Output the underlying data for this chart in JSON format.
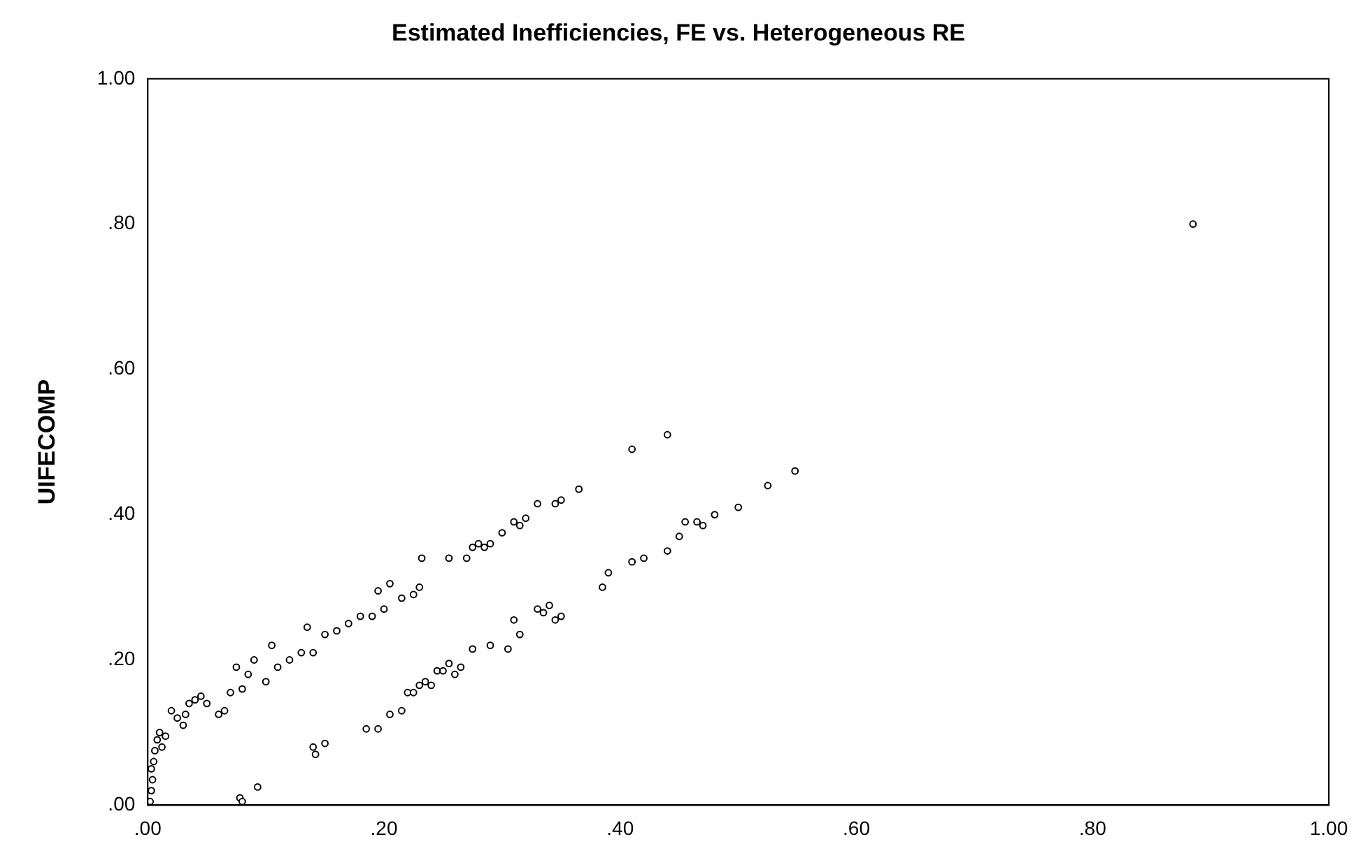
{
  "chart_data": {
    "type": "scatter",
    "title": "Estimated Inefficiencies, FE vs. Heterogeneous RE",
    "ylabel": "UIFECOMP",
    "marker": "circle",
    "grid": false,
    "legend": false,
    "xlim": [
      0,
      1
    ],
    "ylim": [
      0,
      1
    ],
    "xticks": [
      {
        "value": 0,
        "label": ".00"
      },
      {
        "value": 0.2,
        "label": ".20"
      },
      {
        "value": 0.4,
        "label": ".40"
      },
      {
        "value": 0.6,
        "label": ".60"
      },
      {
        "value": 0.8,
        "label": ".80"
      },
      {
        "value": 1,
        "label": "1.00"
      }
    ],
    "yticks": [
      {
        "value": 0,
        "label": ".00"
      },
      {
        "value": 0.2,
        "label": ".20"
      },
      {
        "value": 0.4,
        "label": ".40"
      },
      {
        "value": 0.6,
        "label": ".60"
      },
      {
        "value": 0.8,
        "label": ".80"
      },
      {
        "value": 1,
        "label": "1.00"
      }
    ],
    "series": [
      {
        "color": "#000000",
        "x": [
          0.002,
          0.003,
          0.004,
          0.003,
          0.005,
          0.006,
          0.008,
          0.01,
          0.012,
          0.015,
          0.02,
          0.025,
          0.03,
          0.032,
          0.035,
          0.04,
          0.045,
          0.05,
          0.06,
          0.065,
          0.07,
          0.075,
          0.08,
          0.085,
          0.09,
          0.1,
          0.105,
          0.11,
          0.12,
          0.13,
          0.135,
          0.14,
          0.15,
          0.16,
          0.17,
          0.18,
          0.19,
          0.195,
          0.2,
          0.205,
          0.215,
          0.225,
          0.23,
          0.232,
          0.255,
          0.27,
          0.275,
          0.28,
          0.285,
          0.29,
          0.3,
          0.31,
          0.315,
          0.32,
          0.33,
          0.345,
          0.35,
          0.365,
          0.41,
          0.44,
          0.885,
          0.078,
          0.08,
          0.093,
          0.14,
          0.142,
          0.15,
          0.185,
          0.195,
          0.205,
          0.215,
          0.22,
          0.225,
          0.23,
          0.235,
          0.24,
          0.245,
          0.25,
          0.255,
          0.26,
          0.265,
          0.275,
          0.29,
          0.305,
          0.31,
          0.315,
          0.33,
          0.335,
          0.34,
          0.345,
          0.35,
          0.385,
          0.39,
          0.41,
          0.42,
          0.44,
          0.45,
          0.455,
          0.465,
          0.47,
          0.48,
          0.5,
          0.525,
          0.548
        ],
        "values": [
          0.005,
          0.02,
          0.035,
          0.05,
          0.06,
          0.075,
          0.09,
          0.1,
          0.08,
          0.095,
          0.13,
          0.12,
          0.11,
          0.125,
          0.14,
          0.145,
          0.15,
          0.14,
          0.125,
          0.13,
          0.155,
          0.19,
          0.16,
          0.18,
          0.2,
          0.17,
          0.22,
          0.19,
          0.2,
          0.21,
          0.245,
          0.21,
          0.235,
          0.24,
          0.25,
          0.26,
          0.26,
          0.295,
          0.27,
          0.305,
          0.285,
          0.29,
          0.3,
          0.34,
          0.34,
          0.34,
          0.355,
          0.36,
          0.355,
          0.36,
          0.375,
          0.39,
          0.385,
          0.395,
          0.415,
          0.415,
          0.42,
          0.435,
          0.49,
          0.51,
          0.8,
          0.01,
          0.005,
          0.025,
          0.08,
          0.07,
          0.085,
          0.105,
          0.105,
          0.125,
          0.13,
          0.155,
          0.155,
          0.165,
          0.17,
          0.165,
          0.185,
          0.185,
          0.195,
          0.18,
          0.19,
          0.215,
          0.22,
          0.215,
          0.255,
          0.235,
          0.27,
          0.265,
          0.275,
          0.255,
          0.26,
          0.3,
          0.32,
          0.335,
          0.34,
          0.35,
          0.37,
          0.39,
          0.39,
          0.385,
          0.4,
          0.41,
          0.44,
          0.46
        ]
      }
    ]
  }
}
